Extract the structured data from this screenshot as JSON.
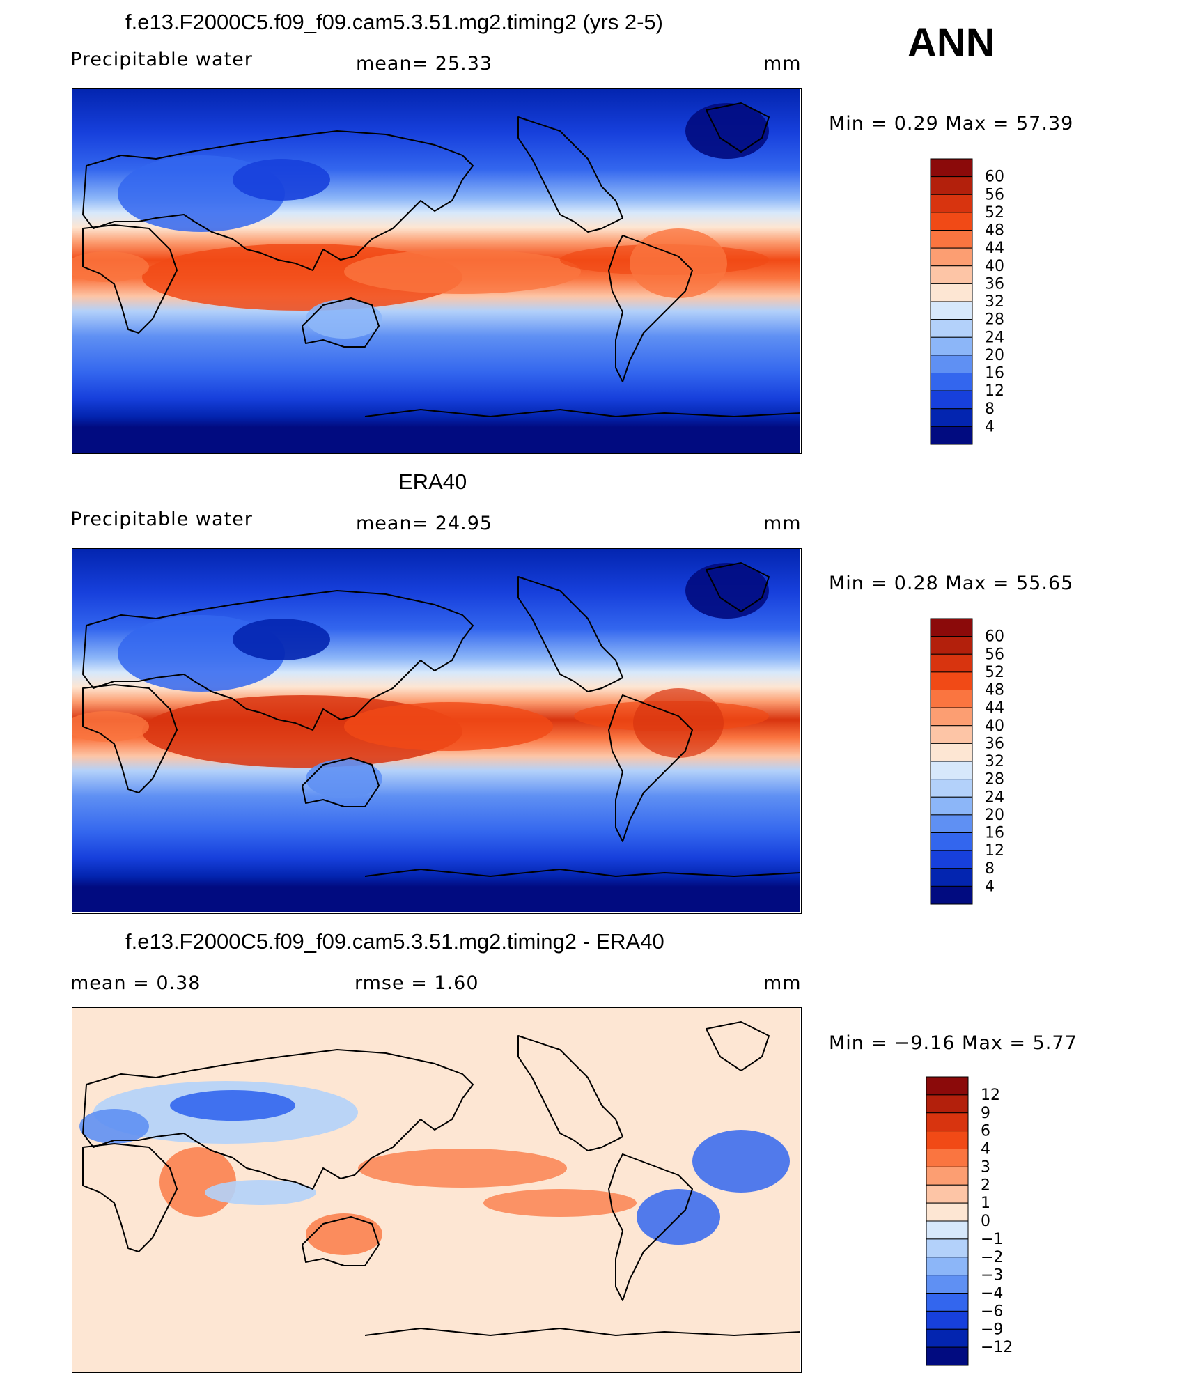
{
  "season": "ANN",
  "panels": [
    {
      "id": "model",
      "title": "f.e13.F2000C5.f09_f09.cam5.3.51.mg2.timing2 (yrs 2-5)",
      "left_label": "Precipitable  water",
      "middle_label": "mean=   25.33",
      "units": "mm",
      "minmax": "Min  =      0.29  Max  =      57.39",
      "colorbar": {
        "labels": [
          "60",
          "56",
          "52",
          "48",
          "44",
          "40",
          "36",
          "32",
          "28",
          "24",
          "20",
          "16",
          "12",
          "8",
          "4"
        ],
        "colors": [
          "#8b0a0a",
          "#b3200c",
          "#d8340f",
          "#f14a16",
          "#fa7540",
          "#fc9e72",
          "#fdc5a6",
          "#fde6d3",
          "#d7e8fb",
          "#b3d1fa",
          "#8cb6f8",
          "#5f90f3",
          "#3366ee",
          "#1740dc",
          "#0325b0",
          "#010b80"
        ]
      }
    },
    {
      "id": "obs",
      "title": "ERA40",
      "left_label": "Precipitable  water",
      "middle_label": "mean=   24.95",
      "units": "mm",
      "minmax": "Min  =      0.28  Max  =      55.65",
      "colorbar": {
        "labels": [
          "60",
          "56",
          "52",
          "48",
          "44",
          "40",
          "36",
          "32",
          "28",
          "24",
          "20",
          "16",
          "12",
          "8",
          "4"
        ],
        "colors": [
          "#8b0a0a",
          "#b3200c",
          "#d8340f",
          "#f14a16",
          "#fa7540",
          "#fc9e72",
          "#fdc5a6",
          "#fde6d3",
          "#d7e8fb",
          "#b3d1fa",
          "#8cb6f8",
          "#5f90f3",
          "#3366ee",
          "#1740dc",
          "#0325b0",
          "#010b80"
        ]
      }
    },
    {
      "id": "diff",
      "title": "f.e13.F2000C5.f09_f09.cam5.3.51.mg2.timing2 - ERA40",
      "left_label": "mean  =      0.38",
      "middle_label": "rmse  =      1.60",
      "units": "mm",
      "minmax": "Min  =    −9.16  Max  =        5.77",
      "colorbar": {
        "labels": [
          "12",
          "9",
          "6",
          "4",
          "3",
          "2",
          "1",
          "0",
          "−1",
          "−2",
          "−3",
          "−4",
          "−6",
          "−9",
          "−12"
        ],
        "colors": [
          "#8b0a0a",
          "#b3200c",
          "#d8340f",
          "#f14a16",
          "#fa7540",
          "#fc9e72",
          "#fdc5a6",
          "#fde6d3",
          "#d7e8fb",
          "#b3d1fa",
          "#8cb6f8",
          "#5f90f3",
          "#3366ee",
          "#1740dc",
          "#0325b0",
          "#010b80"
        ]
      }
    }
  ]
}
